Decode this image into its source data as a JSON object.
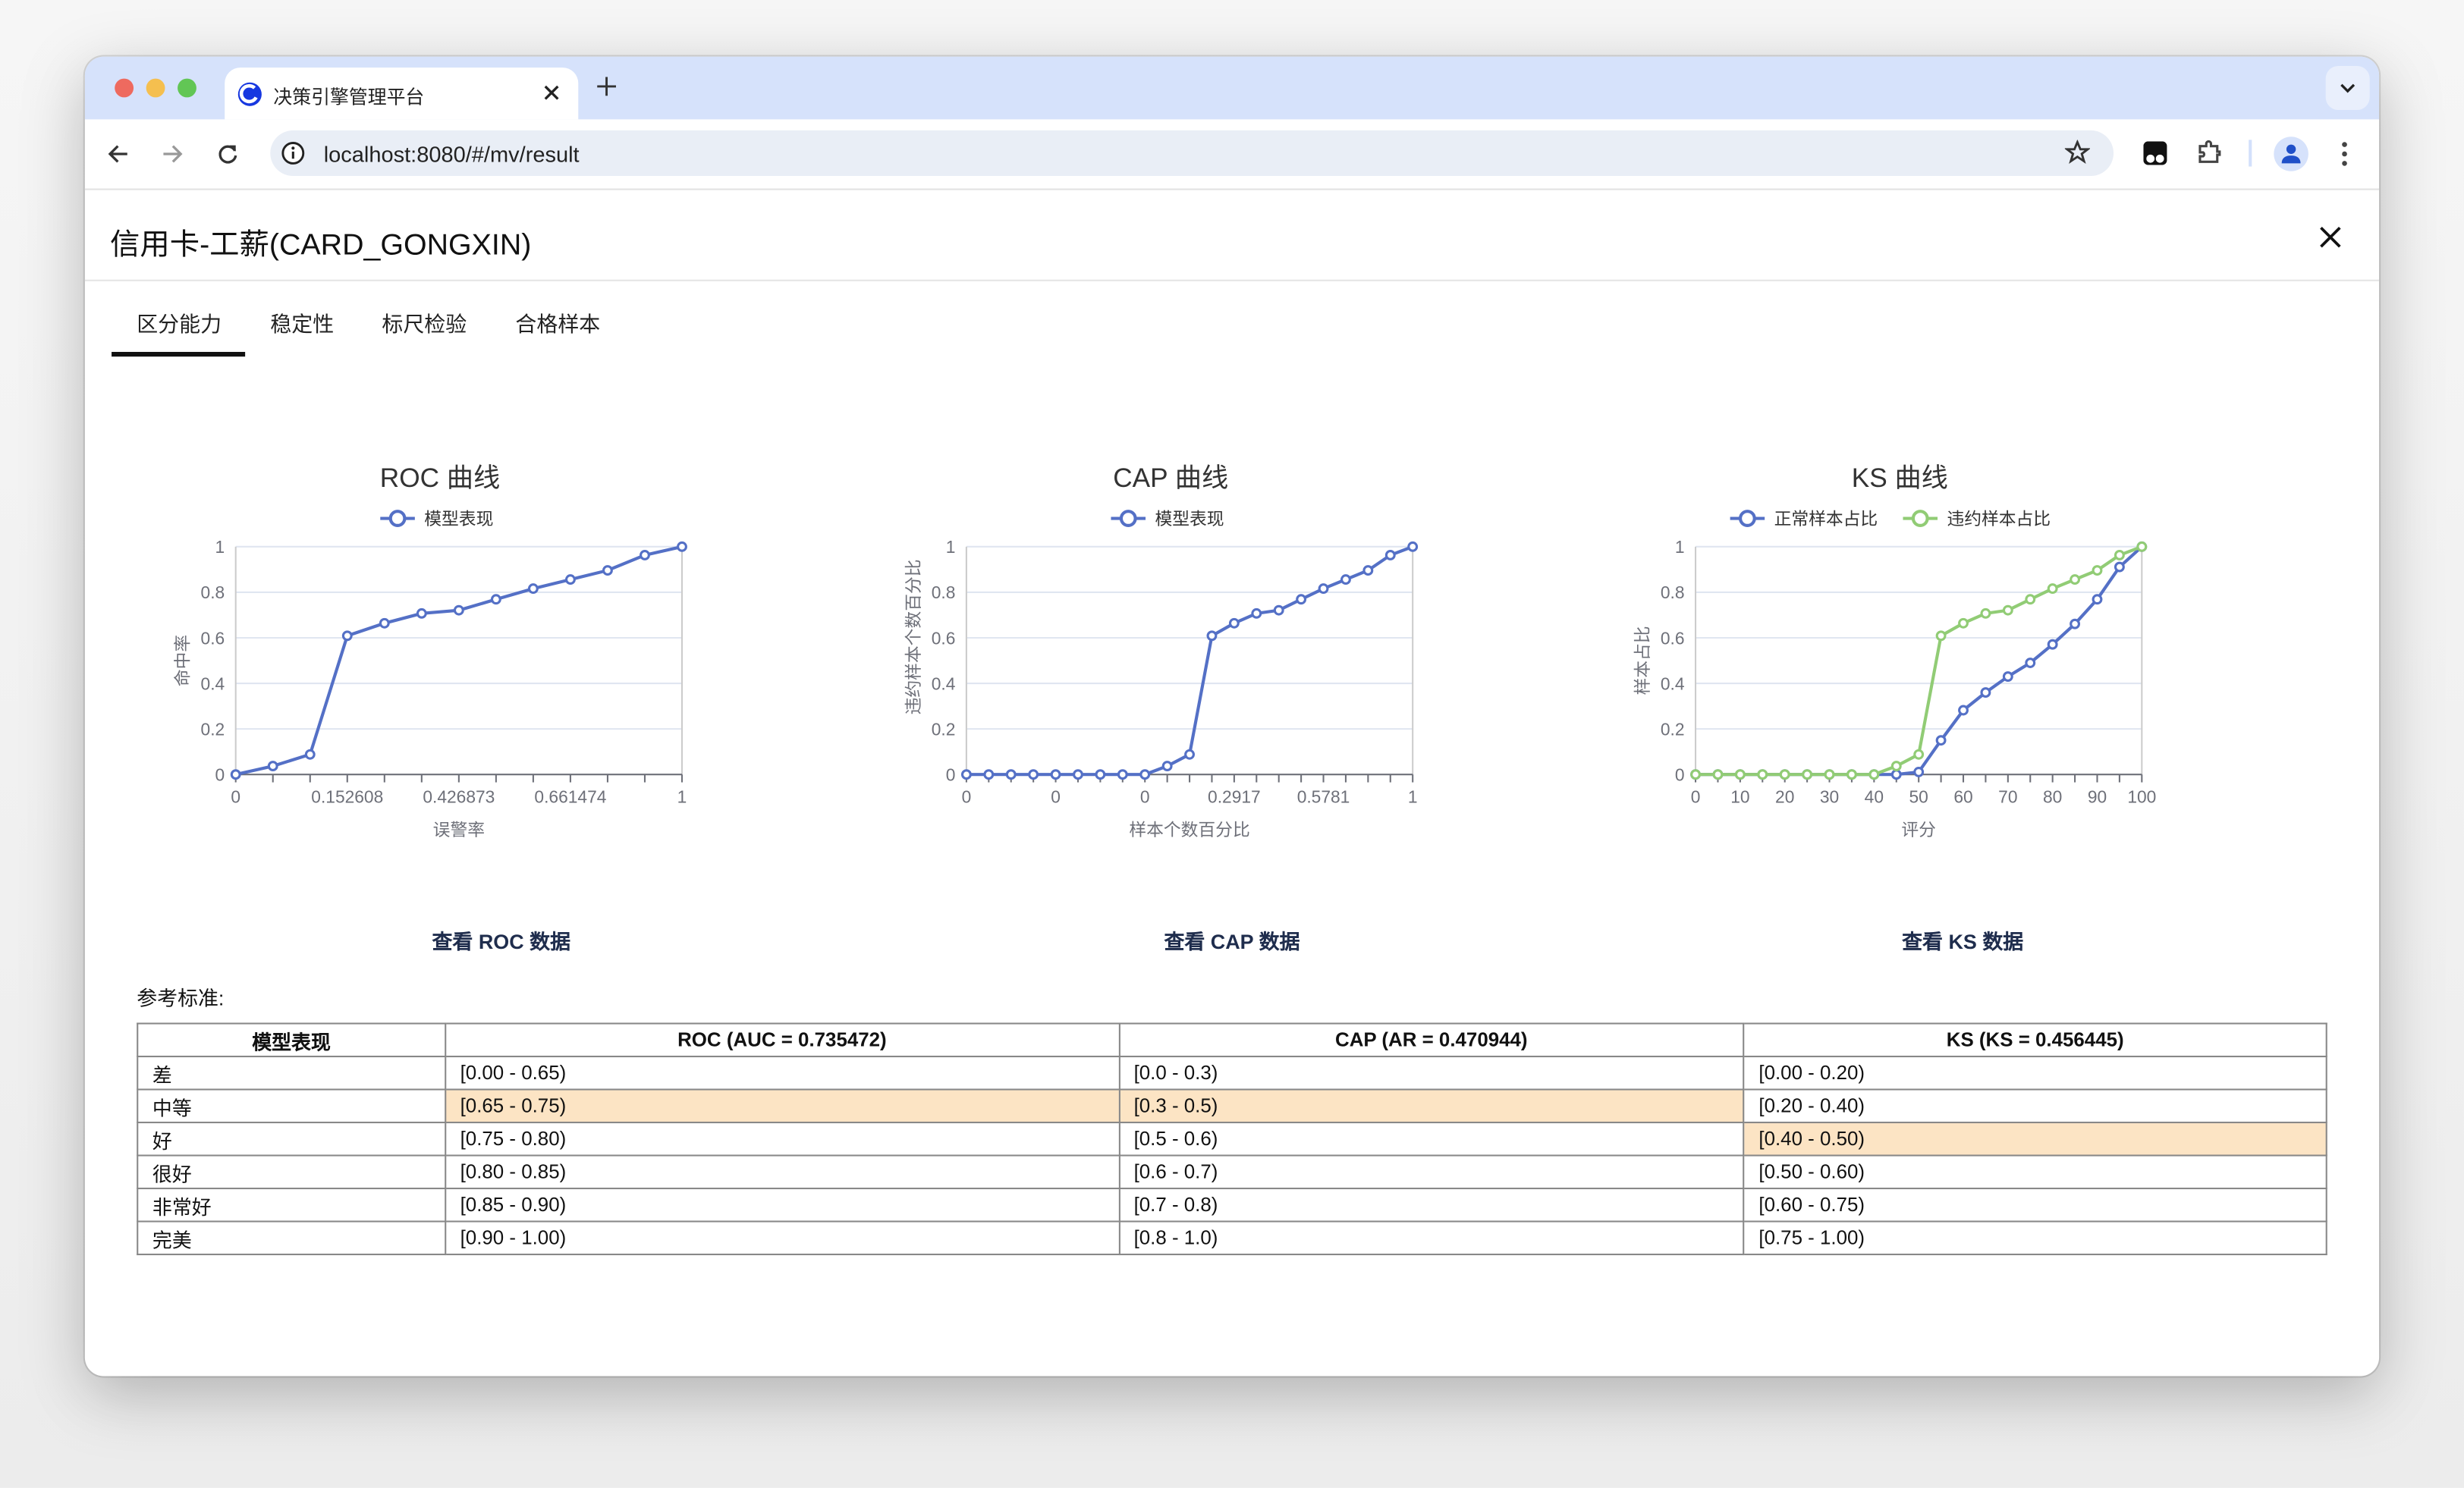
{
  "browser": {
    "tab_title": "决策引擎管理平台",
    "url": "localhost:8080/#/mv/result",
    "icons": [
      "back-arrow-icon",
      "forward-arrow-icon",
      "reload-icon",
      "info-icon",
      "star-icon",
      "extension-icon",
      "puzzle-icon",
      "profile-icon",
      "more-vert-icon",
      "chevron-down-icon",
      "plus-icon",
      "close-icon"
    ]
  },
  "page": {
    "title": "信用卡-工薪(CARD_GONGXIN)",
    "tabs": [
      {
        "label": "区分能力",
        "active": true
      },
      {
        "label": "稳定性"
      },
      {
        "label": "标尺检验"
      },
      {
        "label": "合格样本"
      }
    ],
    "links": {
      "roc": "查看 ROC 数据",
      "cap": "查看 CAP 数据",
      "ks": "查看 KS 数据"
    },
    "reference_label": "参考标准:",
    "table": {
      "headers": [
        "模型表现",
        "ROC (AUC = 0.735472)",
        "CAP (AR = 0.470944)",
        "KS (KS = 0.456445)"
      ],
      "rows": [
        [
          "差",
          "[0.00 - 0.65)",
          "[0.0 - 0.3)",
          "[0.00 - 0.20)"
        ],
        [
          "中等",
          "[0.65 - 0.75)",
          "[0.3 - 0.5)",
          "[0.20 - 0.40)"
        ],
        [
          "好",
          "[0.75 - 0.80)",
          "[0.5 - 0.6)",
          "[0.40 - 0.50)"
        ],
        [
          "很好",
          "[0.80 - 0.85)",
          "[0.6 - 0.7)",
          "[0.50 - 0.60)"
        ],
        [
          "非常好",
          "[0.85 - 0.90)",
          "[0.7 - 0.8)",
          "[0.60 - 0.75)"
        ],
        [
          "完美",
          "[0.90 - 1.00)",
          "[0.8 - 1.0)",
          "[0.75 - 1.00)"
        ]
      ],
      "highlight": [
        [
          1,
          1
        ],
        [
          1,
          2
        ],
        [
          2,
          3
        ]
      ],
      "highlight_color": "#fce4c4"
    }
  },
  "chart_data": [
    {
      "type": "line",
      "title": "ROC 曲线",
      "xlabel": "误警率",
      "ylabel": "命中率",
      "ylim": [
        0,
        1
      ],
      "yticks": [
        "0",
        "0.2",
        "0.4",
        "0.6",
        "0.8",
        "1"
      ],
      "x_labels": [
        "0",
        "",
        "",
        "0.152608",
        "",
        "",
        "0.426873",
        "",
        "",
        "0.661474",
        "",
        "",
        "1"
      ],
      "grid": true,
      "legend": "top",
      "series": [
        {
          "name": "模型表现",
          "color": "#5470c6",
          "values": [
            0,
            0.037,
            0.088,
            0.609,
            0.664,
            0.707,
            0.721,
            0.769,
            0.816,
            0.856,
            0.896,
            0.963,
            1
          ]
        }
      ]
    },
    {
      "type": "line",
      "title": "CAP 曲线",
      "xlabel": "样本个数百分比",
      "ylabel": "违约样本个数百分比",
      "ylim": [
        0,
        1
      ],
      "yticks": [
        "0",
        "0.2",
        "0.4",
        "0.6",
        "0.8",
        "1"
      ],
      "x_labels": [
        "0",
        "",
        "",
        "",
        "0",
        "",
        "",
        "",
        "0",
        "",
        "",
        "",
        "0.2917",
        "",
        "",
        "",
        "0.5781",
        "",
        "",
        "",
        "1"
      ],
      "grid": true,
      "legend": "top",
      "series": [
        {
          "name": "模型表现",
          "color": "#5470c6",
          "values": [
            0,
            0,
            0,
            0,
            0,
            0,
            0,
            0,
            0,
            0.037,
            0.088,
            0.609,
            0.664,
            0.707,
            0.721,
            0.769,
            0.816,
            0.856,
            0.896,
            0.963,
            1
          ]
        }
      ]
    },
    {
      "type": "line",
      "title": "KS 曲线",
      "xlabel": "评分",
      "ylabel": "样本占比",
      "ylim": [
        0,
        1
      ],
      "yticks": [
        "0",
        "0.2",
        "0.4",
        "0.6",
        "0.8",
        "1"
      ],
      "x_labels": [
        "0",
        "",
        "10",
        "",
        "20",
        "",
        "30",
        "",
        "40",
        "",
        "50",
        "",
        "60",
        "",
        "70",
        "",
        "80",
        "",
        "90",
        "",
        "100"
      ],
      "grid": true,
      "legend": "top",
      "series": [
        {
          "name": "正常样本占比",
          "color": "#5470c6",
          "values": [
            0,
            0,
            0,
            0,
            0,
            0,
            0,
            0,
            0,
            0,
            0.011,
            0.15,
            0.282,
            0.36,
            0.43,
            0.49,
            0.571,
            0.661,
            0.769,
            0.911,
            1
          ]
        },
        {
          "name": "违约样本占比",
          "color": "#91cc75",
          "values": [
            0,
            0,
            0,
            0,
            0,
            0,
            0,
            0,
            0,
            0.037,
            0.088,
            0.609,
            0.664,
            0.707,
            0.721,
            0.769,
            0.816,
            0.856,
            0.896,
            0.963,
            1
          ]
        }
      ]
    }
  ]
}
